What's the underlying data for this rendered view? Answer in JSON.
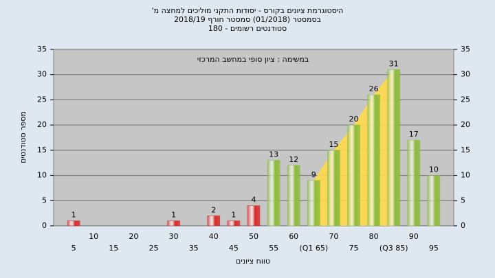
{
  "chart_data": {
    "type": "bar",
    "title": [
      "היסטוגרמת ציונים בקורס - יסודות התקני מוליכים למחצה מ'",
      "בסמסטר  (01/2018)  סמסטר חורף 2018/19",
      "סטודנטים רשומים - 180"
    ],
    "annotation": "במשימה : ציון סופי במחשב המרכזי",
    "x_label": "טווח ציונים",
    "y_label": "מספר סטודנטים",
    "categories": [
      "5",
      "10",
      "15",
      "20",
      "25",
      "30",
      "35",
      "40",
      "45",
      "50",
      "55",
      "60",
      "(Q1 65)",
      "70",
      "75",
      "80",
      "(Q3 85)",
      "90",
      "95"
    ],
    "values": [
      1,
      0,
      0,
      0,
      0,
      1,
      0,
      2,
      1,
      4,
      13,
      12,
      9,
      15,
      20,
      26,
      31,
      17,
      10
    ],
    "colors": [
      "#d82b2b",
      "#d82b2b",
      "#d82b2b",
      "#d82b2b",
      "#d82b2b",
      "#d82b2b",
      "#d82b2b",
      "#d82b2b",
      "#d82b2b",
      "#d82b2b",
      "#8dbb3c",
      "#8dbb3c",
      "#8dbb3c",
      "#8dbb3c",
      "#8dbb3c",
      "#8dbb3c",
      "#8dbb3c",
      "#8dbb3c",
      "#8dbb3c"
    ],
    "ylim": [
      0,
      35
    ],
    "yticks": [
      0,
      5,
      10,
      15,
      20,
      25,
      30,
      35
    ],
    "grid": true
  }
}
